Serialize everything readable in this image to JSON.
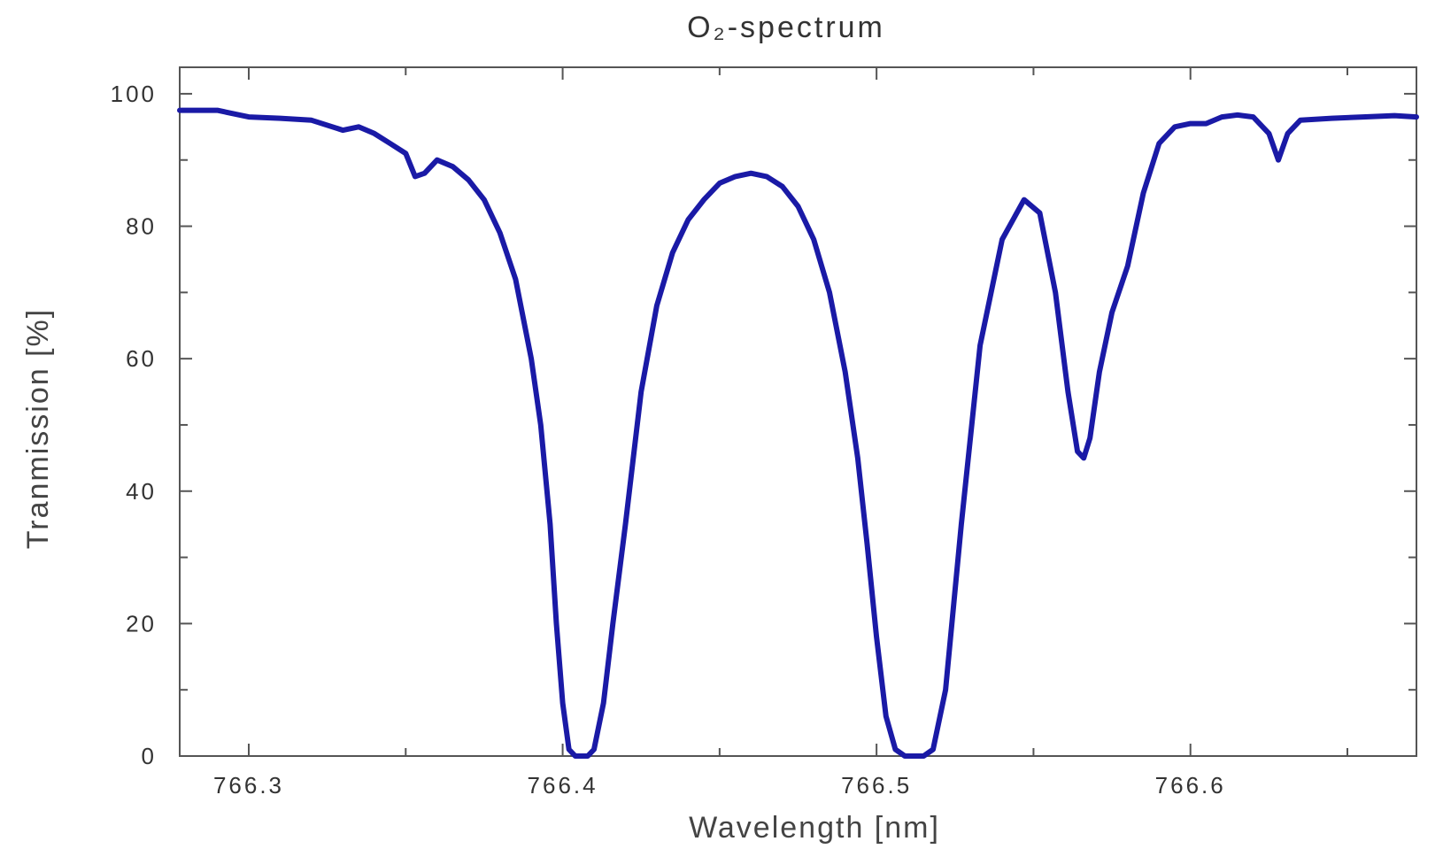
{
  "chart_data": {
    "type": "line",
    "title": "O₂-spectrum",
    "xlabel": "Wavelength [nm]",
    "ylabel": "Tranmission [%]",
    "xlim": [
      766.278,
      766.672
    ],
    "ylim": [
      0,
      104
    ],
    "xticks": [
      766.3,
      766.4,
      766.5,
      766.6
    ],
    "xtick_labels": [
      "766.3",
      "766.4",
      "766.5",
      "766.6"
    ],
    "yticks": [
      0,
      20,
      40,
      60,
      80,
      100
    ],
    "ytick_labels": [
      "0",
      "20",
      "40",
      "60",
      "80",
      "100"
    ],
    "grid": false,
    "line_color": "#1a1aa6",
    "series": [
      {
        "x": [
          766.278,
          766.29,
          766.3,
          766.31,
          766.32,
          766.33,
          766.335,
          766.34,
          766.345,
          766.35,
          766.353,
          766.356,
          766.36,
          766.365,
          766.37,
          766.375,
          766.38,
          766.385,
          766.39,
          766.393,
          766.396,
          766.398,
          766.4,
          766.402,
          766.404,
          766.406,
          766.408,
          766.41,
          766.413,
          766.416,
          766.42,
          766.425,
          766.43,
          766.435,
          766.44,
          766.445,
          766.45,
          766.455,
          766.46,
          766.465,
          766.47,
          766.475,
          766.48,
          766.485,
          766.49,
          766.494,
          766.497,
          766.5,
          766.503,
          766.506,
          766.509,
          766.512,
          766.515,
          766.518,
          766.522,
          766.527,
          766.533,
          766.54,
          766.547,
          766.552,
          766.557,
          766.561,
          766.564,
          766.566,
          766.568,
          766.571,
          766.575,
          766.58,
          766.585,
          766.59,
          766.595,
          766.6,
          766.605,
          766.61,
          766.615,
          766.62,
          766.625,
          766.628,
          766.631,
          766.635,
          766.645,
          766.655,
          766.665,
          766.672
        ],
        "y": [
          97.5,
          97.5,
          96.5,
          96.3,
          96.0,
          94.5,
          95.0,
          94.0,
          92.5,
          91.0,
          87.5,
          88.0,
          90.0,
          89.0,
          87.0,
          84.0,
          79.0,
          72.0,
          60.0,
          50.0,
          35.0,
          20.0,
          8.0,
          1.0,
          0.0,
          0.0,
          0.0,
          1.0,
          8.0,
          20.0,
          35.0,
          55.0,
          68.0,
          76.0,
          81.0,
          84.0,
          86.5,
          87.5,
          88.0,
          87.5,
          86.0,
          83.0,
          78.0,
          70.0,
          58.0,
          45.0,
          32.0,
          18.0,
          6.0,
          1.0,
          0.0,
          0.0,
          0.0,
          1.0,
          10.0,
          35.0,
          62.0,
          78.0,
          84.0,
          82.0,
          70.0,
          55.0,
          46.0,
          45.0,
          48.0,
          58.0,
          67.0,
          74.0,
          85.0,
          92.5,
          95.0,
          95.5,
          95.5,
          96.5,
          96.8,
          96.5,
          94.0,
          90.0,
          94.0,
          96.0,
          96.3,
          96.5,
          96.7,
          96.5
        ]
      }
    ]
  }
}
